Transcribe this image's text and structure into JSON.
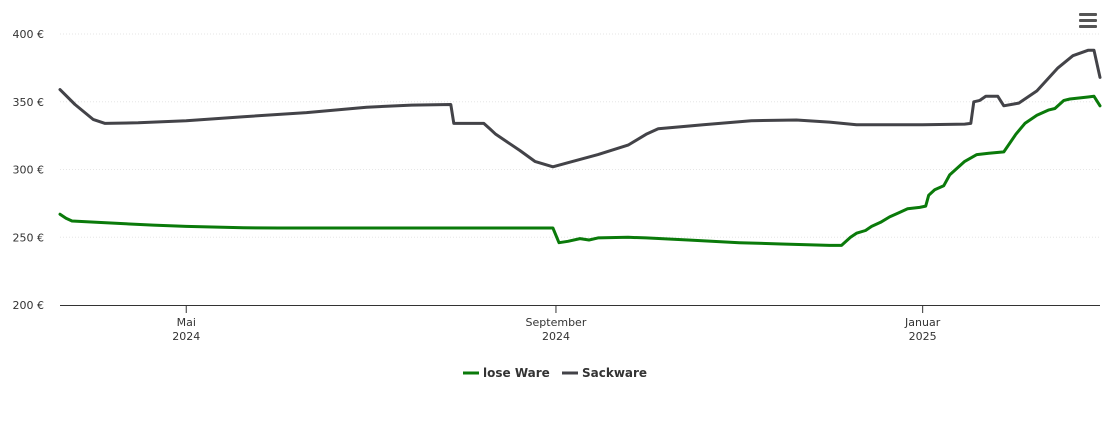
{
  "chart_data": {
    "type": "line",
    "x_axis": {
      "start": "2024-03-20",
      "end": "2025-03-01",
      "ticks": [
        {
          "date": "2024-05-01",
          "label_line1": "Mai",
          "label_line2": "2024"
        },
        {
          "date": "2024-09-01",
          "label_line1": "September",
          "label_line2": "2024"
        },
        {
          "date": "2025-01-01",
          "label_line1": "Januar",
          "label_line2": "2025"
        }
      ]
    },
    "y_axis": {
      "min": 200,
      "max": 400,
      "ticks": [
        {
          "value": 400,
          "label": "400 €"
        },
        {
          "value": 350,
          "label": "350 €"
        },
        {
          "value": 300,
          "label": "300 €"
        },
        {
          "value": 250,
          "label": "250 €"
        },
        {
          "value": 200,
          "label": "200 €"
        }
      ]
    },
    "grid": true,
    "legend_position": "bottom",
    "series": [
      {
        "name": "lose Ware",
        "color": "#0a7a0a",
        "points": [
          [
            "2024-03-20",
            267
          ],
          [
            "2024-03-22",
            264
          ],
          [
            "2024-03-24",
            262
          ],
          [
            "2024-04-01",
            261
          ],
          [
            "2024-04-20",
            259
          ],
          [
            "2024-05-01",
            258
          ],
          [
            "2024-05-20",
            257
          ],
          [
            "2024-06-01",
            256.8
          ],
          [
            "2024-07-01",
            256.8
          ],
          [
            "2024-08-01",
            256.8
          ],
          [
            "2024-08-31",
            256.8
          ],
          [
            "2024-09-02",
            246
          ],
          [
            "2024-09-05",
            247
          ],
          [
            "2024-09-09",
            249
          ],
          [
            "2024-09-12",
            248
          ],
          [
            "2024-09-15",
            249.5
          ],
          [
            "2024-09-25",
            250
          ],
          [
            "2024-10-01",
            249.5
          ],
          [
            "2024-10-15",
            248
          ],
          [
            "2024-11-01",
            246
          ],
          [
            "2024-11-15",
            245
          ],
          [
            "2024-12-01",
            244
          ],
          [
            "2024-12-05",
            244
          ],
          [
            "2024-12-08",
            250
          ],
          [
            "2024-12-10",
            253
          ],
          [
            "2024-12-13",
            255
          ],
          [
            "2024-12-15",
            258
          ],
          [
            "2024-12-18",
            261
          ],
          [
            "2024-12-21",
            265
          ],
          [
            "2024-12-24",
            268
          ],
          [
            "2024-12-27",
            271
          ],
          [
            "2024-12-31",
            272
          ],
          [
            "2025-01-02",
            273
          ],
          [
            "2025-01-03",
            281
          ],
          [
            "2025-01-05",
            285
          ],
          [
            "2025-01-08",
            288
          ],
          [
            "2025-01-10",
            296
          ],
          [
            "2025-01-15",
            306
          ],
          [
            "2025-01-19",
            311
          ],
          [
            "2025-01-23",
            312
          ],
          [
            "2025-01-28",
            313
          ],
          [
            "2025-02-01",
            326
          ],
          [
            "2025-02-04",
            334
          ],
          [
            "2025-02-08",
            340
          ],
          [
            "2025-02-12",
            344
          ],
          [
            "2025-02-14",
            345
          ],
          [
            "2025-02-17",
            351
          ],
          [
            "2025-02-19",
            352
          ],
          [
            "2025-02-25",
            353.5
          ],
          [
            "2025-02-27",
            354
          ],
          [
            "2025-03-01",
            347
          ]
        ]
      },
      {
        "name": "Sackware",
        "color": "#434348",
        "points": [
          [
            "2024-03-20",
            359
          ],
          [
            "2024-03-25",
            348
          ],
          [
            "2024-03-31",
            337
          ],
          [
            "2024-04-04",
            334
          ],
          [
            "2024-04-15",
            334.5
          ],
          [
            "2024-05-01",
            336
          ],
          [
            "2024-05-20",
            339
          ],
          [
            "2024-06-10",
            342
          ],
          [
            "2024-06-30",
            346
          ],
          [
            "2024-07-15",
            347.5
          ],
          [
            "2024-07-28",
            348
          ],
          [
            "2024-07-29",
            334
          ],
          [
            "2024-08-05",
            334
          ],
          [
            "2024-08-08",
            334
          ],
          [
            "2024-08-10",
            330
          ],
          [
            "2024-08-12",
            326
          ],
          [
            "2024-08-20",
            314
          ],
          [
            "2024-08-25",
            306
          ],
          [
            "2024-08-31",
            302
          ],
          [
            "2024-09-05",
            305
          ],
          [
            "2024-09-15",
            311
          ],
          [
            "2024-09-25",
            318
          ],
          [
            "2024-10-01",
            326
          ],
          [
            "2024-10-05",
            330
          ],
          [
            "2024-10-20",
            333
          ],
          [
            "2024-11-05",
            336
          ],
          [
            "2024-11-20",
            336.5
          ],
          [
            "2024-12-01",
            335
          ],
          [
            "2024-12-10",
            333
          ],
          [
            "2025-01-01",
            333
          ],
          [
            "2025-01-15",
            333.5
          ],
          [
            "2025-01-17",
            334
          ],
          [
            "2025-01-18",
            350
          ],
          [
            "2025-01-20",
            351
          ],
          [
            "2025-01-22",
            354
          ],
          [
            "2025-01-26",
            354
          ],
          [
            "2025-01-28",
            347
          ],
          [
            "2025-02-02",
            349
          ],
          [
            "2025-02-08",
            358
          ],
          [
            "2025-02-15",
            375
          ],
          [
            "2025-02-20",
            384
          ],
          [
            "2025-02-25",
            388
          ],
          [
            "2025-02-27",
            388
          ],
          [
            "2025-03-01",
            368
          ]
        ]
      }
    ]
  }
}
